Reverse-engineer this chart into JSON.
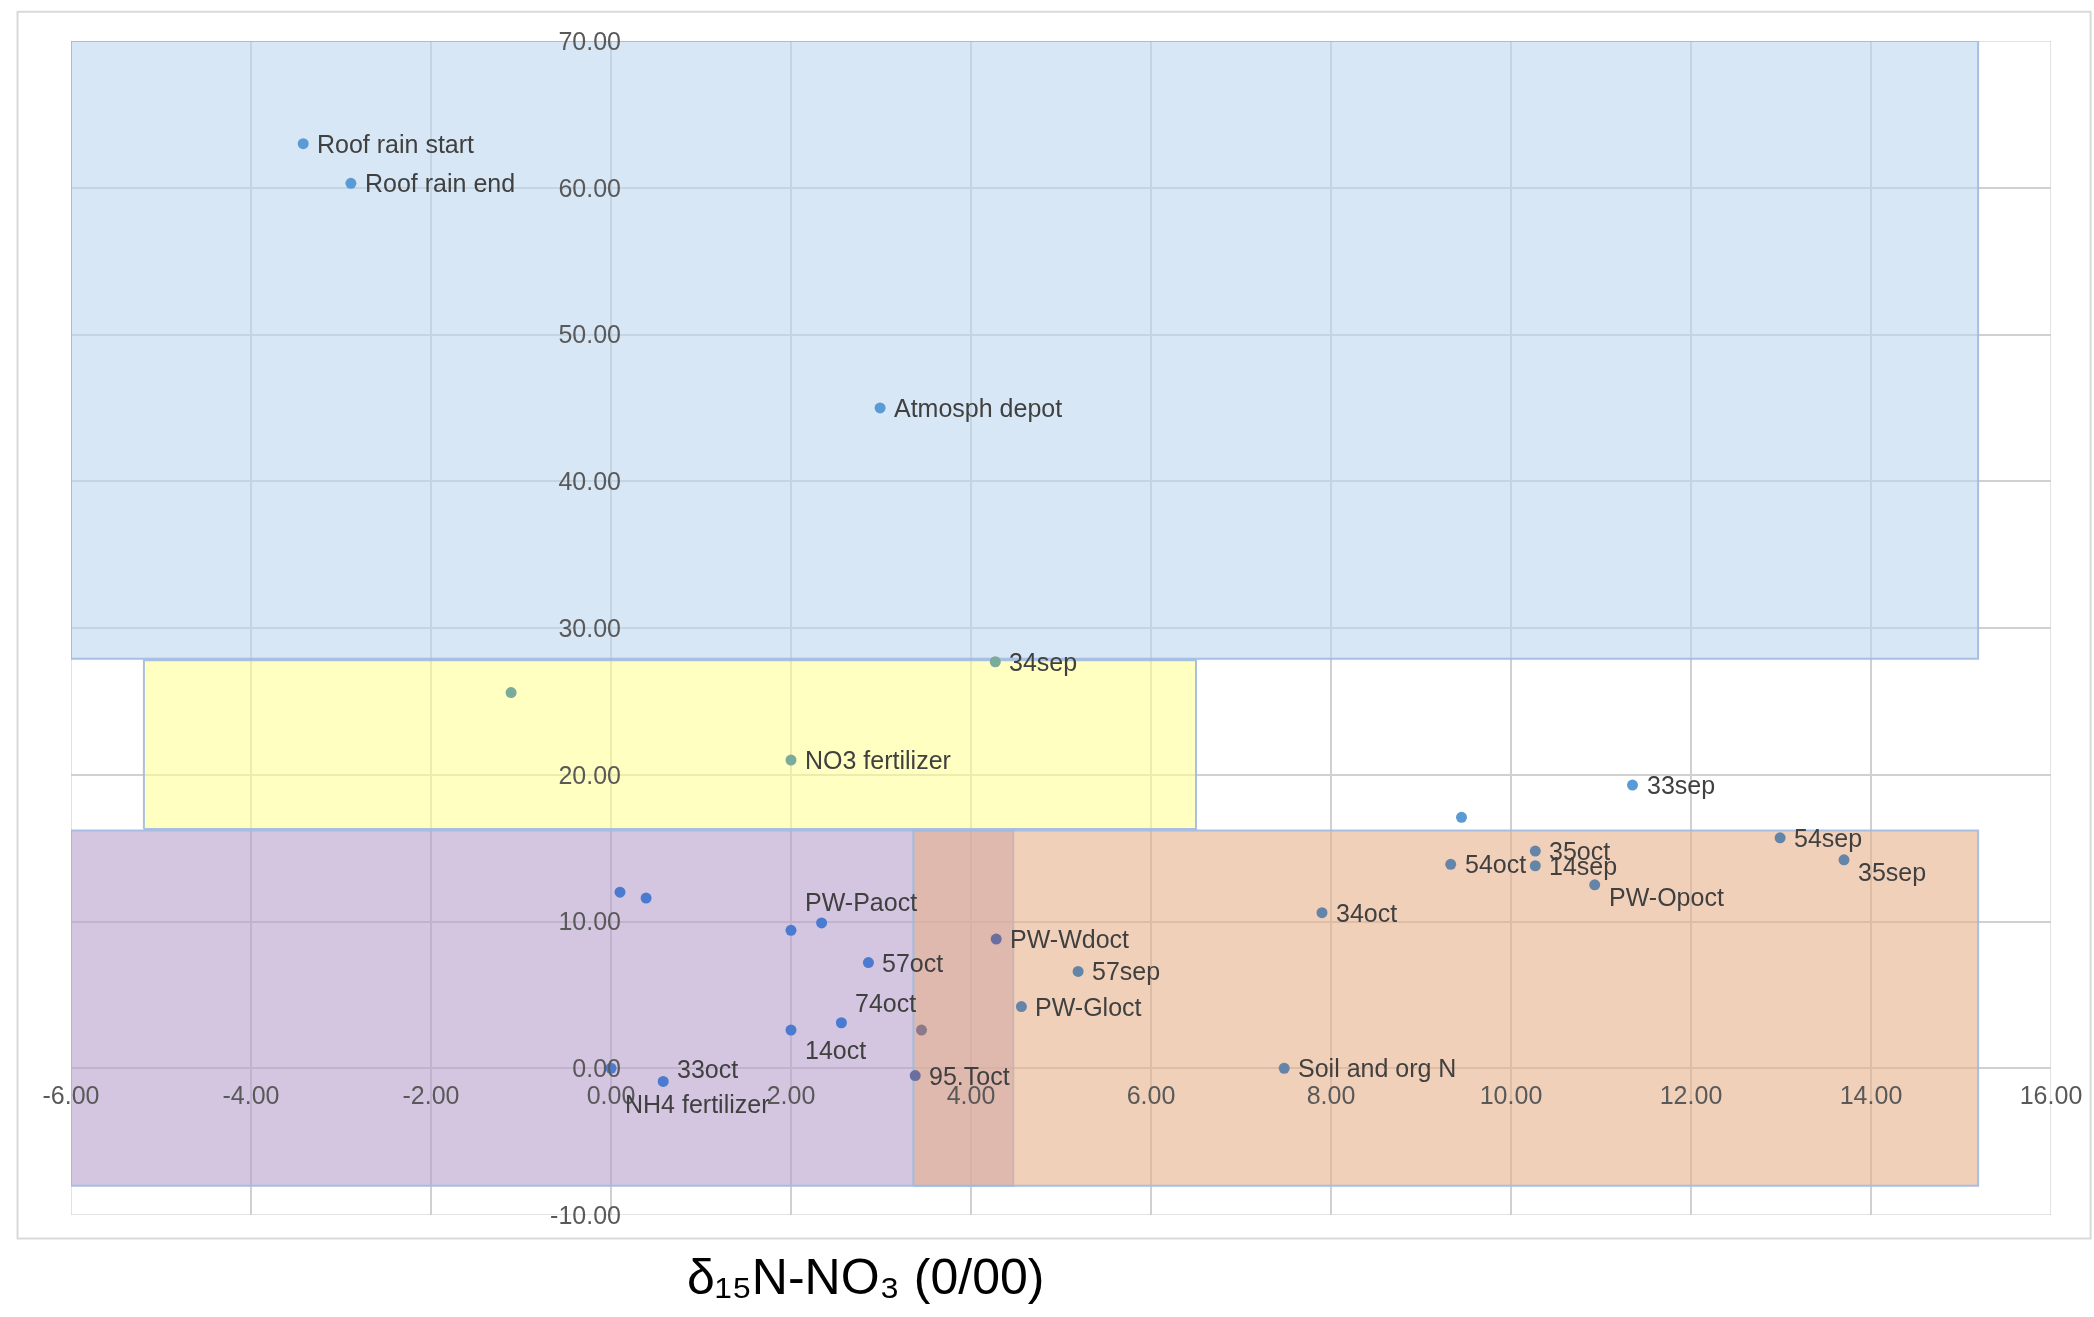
{
  "chart_data": {
    "type": "scatter",
    "xlabel": "δ₁₅N-NO₃ (0/00)",
    "series": [
      {
        "type": "area",
        "color": "#bdd7ee",
        "x": [
          -6.0,
          15.19,
          15.19,
          -6.0
        ],
        "values": [
          27.9,
          27.9,
          70.0,
          70.0
        ]
      },
      {
        "type": "area",
        "color": "#ffff99",
        "x": [
          -5.19,
          6.5,
          6.5,
          -5.19
        ],
        "values": [
          16.3,
          16.3,
          27.8,
          27.8
        ]
      },
      {
        "type": "area",
        "color": "#b8a0cc",
        "x": [
          -6.0,
          4.47,
          4.47,
          -6.0
        ],
        "values": [
          -8.0,
          -8.0,
          16.2,
          16.2
        ]
      },
      {
        "type": "area",
        "color": "#e8b08c",
        "x": [
          3.36,
          15.19,
          15.19,
          3.36
        ],
        "values": [
          -8.0,
          -8.0,
          16.2,
          16.2
        ]
      },
      {
        "marker": "circle",
        "x": [
          -3.42,
          -2.89,
          2.99,
          4.27,
          -1.11,
          2.0,
          11.35,
          9.45,
          12.99,
          10.27,
          10.27,
          9.33,
          13.7,
          10.93,
          7.9,
          4.28,
          5.19,
          4.56,
          7.48,
          0.1,
          0.39,
          2.0,
          2.34,
          2.86,
          2.0,
          2.56,
          3.45,
          0.0,
          0.58,
          3.38
        ],
        "values": [
          63.0,
          60.3,
          45.0,
          27.7,
          25.6,
          21.0,
          19.3,
          17.1,
          15.7,
          14.8,
          13.8,
          13.9,
          14.2,
          12.5,
          10.6,
          8.8,
          6.6,
          4.2,
          0.0,
          12.0,
          11.6,
          9.4,
          9.9,
          7.2,
          2.6,
          3.1,
          2.6,
          0.0,
          -0.9,
          -0.5
        ],
        "colors": [
          "#5b9bd5",
          "#5b9bd5",
          "#5b9bd5",
          "#7aab9b",
          "#7aab9b",
          "#7aab9b",
          "#5b9bd5",
          "#5b9bd5",
          "#6585a8",
          "#6585a8",
          "#6585a8",
          "#6585a8",
          "#6585a8",
          "#6585a8",
          "#6585a8",
          "#6a6f9f",
          "#6585a8",
          "#6585a8",
          "#6585a8",
          "#4a7bd0",
          "#4a7bd0",
          "#4a7bd0",
          "#4a7bd0",
          "#4a7bd0",
          "#4a7bd0",
          "#4a7bd0",
          "#8a7a8a",
          "#4a7bd0",
          "#4a7bd0",
          "#6a6f9f"
        ]
      }
    ],
    "annotations": [
      {
        "text": "Roof rain start",
        "x": -3.42,
        "y": 63.0
      },
      {
        "text": "Roof rain end",
        "x": -2.89,
        "y": 60.3
      },
      {
        "text": "Atmosph depot",
        "x": 2.99,
        "y": 45.0
      },
      {
        "text": "34sep",
        "x": 4.27,
        "y": 27.7
      },
      {
        "text": "NO3 fertilizer",
        "x": 2.0,
        "y": 21.0
      },
      {
        "text": "33sep",
        "x": 11.35,
        "y": 19.3
      },
      {
        "text": "54sep",
        "x": 12.99,
        "y": 15.7
      },
      {
        "text": "35oct",
        "x": 10.27,
        "y": 14.8
      },
      {
        "text": "14sep",
        "x": 10.27,
        "y": 13.8
      },
      {
        "text": "54oct",
        "x": 9.33,
        "y": 13.9
      },
      {
        "text": "35sep",
        "x": 13.7,
        "y": 14.2
      },
      {
        "text": "PW-Opoct",
        "x": 10.93,
        "y": 12.5
      },
      {
        "text": "34oct",
        "x": 7.9,
        "y": 10.6
      },
      {
        "text": "PW-Wdoct",
        "x": 4.28,
        "y": 8.8
      },
      {
        "text": "57sep",
        "x": 5.19,
        "y": 6.6
      },
      {
        "text": "PW-Gloct",
        "x": 4.56,
        "y": 4.2
      },
      {
        "text": "Soil and org N",
        "x": 7.48,
        "y": 0.0
      },
      {
        "text": "PW-Paoct",
        "x": 2.0,
        "y": 9.4
      },
      {
        "text": "57oct",
        "x": 2.86,
        "y": 7.2
      },
      {
        "text": "14oct",
        "x": 2.0,
        "y": 2.6
      },
      {
        "text": "74oct",
        "x": 2.56,
        "y": 3.1
      },
      {
        "text": "NH4 fertilizer",
        "x": 0.0,
        "y": 0.0
      },
      {
        "text": "33oct",
        "x": 0.58,
        "y": -0.9
      },
      {
        "text": "95.Toct",
        "x": 3.38,
        "y": -0.5
      }
    ],
    "xlim": [
      -6,
      16
    ],
    "xticks": [
      {
        "value": -6,
        "label": "-6.00"
      },
      {
        "value": -4,
        "label": "-4.00"
      },
      {
        "value": -2,
        "label": "-2.00"
      },
      {
        "value": 0,
        "label": "0.00"
      },
      {
        "value": 2,
        "label": "2.00"
      },
      {
        "value": 4,
        "label": "4.00"
      },
      {
        "value": 6,
        "label": "6.00"
      },
      {
        "value": 8,
        "label": "8.00"
      },
      {
        "value": 10,
        "label": "10.00"
      },
      {
        "value": 12,
        "label": "12.00"
      },
      {
        "value": 14,
        "label": "14.00"
      },
      {
        "value": 16,
        "label": "16.00"
      }
    ],
    "ylim": [
      -10,
      70
    ],
    "yticks": [
      {
        "value": -10,
        "label": "-10.00"
      },
      {
        "value": 0,
        "label": "0.00"
      },
      {
        "value": 10,
        "label": "10.00"
      },
      {
        "value": 20,
        "label": "20.00"
      },
      {
        "value": 30,
        "label": "30.00"
      },
      {
        "value": 40,
        "label": "40.00"
      },
      {
        "value": 50,
        "label": "50.00"
      },
      {
        "value": 60,
        "label": "60.00"
      },
      {
        "value": 70,
        "label": "70.00"
      }
    ],
    "grid": true
  }
}
